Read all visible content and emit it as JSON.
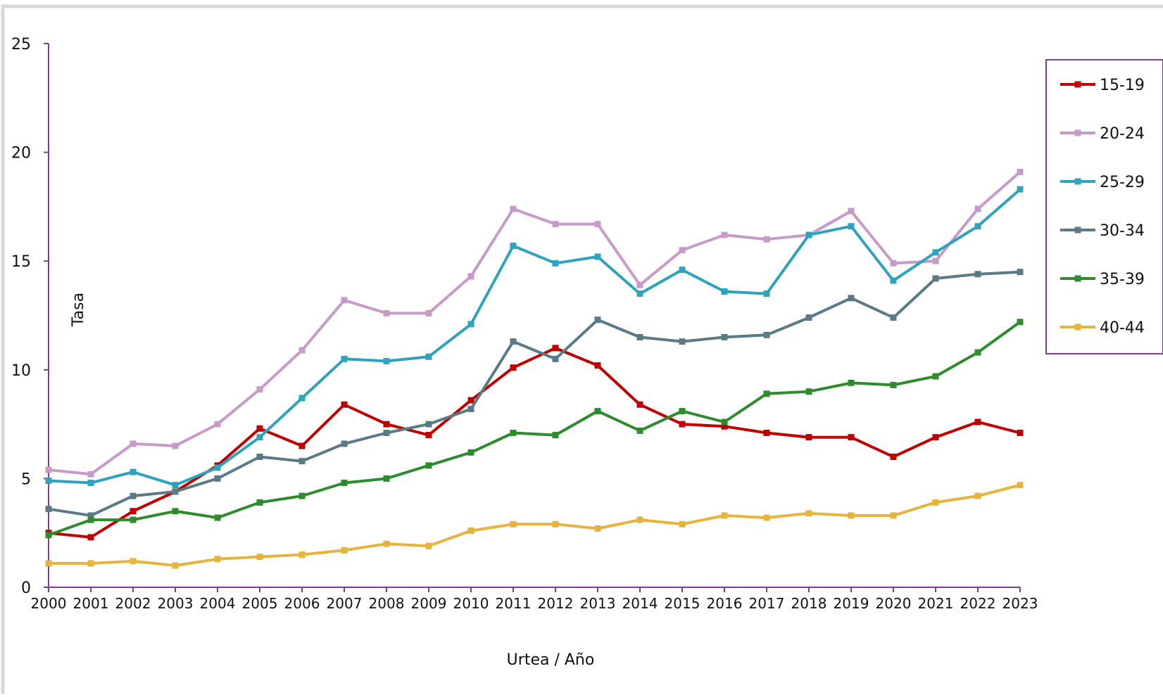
{
  "chart_data": {
    "type": "line",
    "title": "",
    "xlabel": "Urtea / Año",
    "ylabel": "Tasa",
    "x": [
      "2000",
      "2001",
      "2002",
      "2003",
      "2004",
      "2005",
      "2006",
      "2007",
      "2008",
      "2009",
      "2010",
      "2011",
      "2012",
      "2013",
      "2014",
      "2015",
      "2016",
      "2017",
      "2018",
      "2019",
      "2020",
      "2021",
      "2022",
      "2023"
    ],
    "y_ticks": [
      "0",
      "5",
      "10",
      "15",
      "20",
      "25"
    ],
    "ylim": [
      0,
      25
    ],
    "grid": false,
    "legend_position": "right",
    "colors": {
      "axis": "#7b3f8f",
      "frame": "#d9d9d9",
      "legend_border": "#7b3f8f"
    },
    "series": [
      {
        "name": "15-19",
        "color": "#c00000",
        "values": [
          2.5,
          2.3,
          3.5,
          4.4,
          5.6,
          7.3,
          6.5,
          8.4,
          7.5,
          7.0,
          8.6,
          10.1,
          11.0,
          10.2,
          8.4,
          7.5,
          7.4,
          7.1,
          6.9,
          6.9,
          6.0,
          6.9,
          7.6,
          7.1
        ]
      },
      {
        "name": "20-24",
        "color": "#c89ac9",
        "values": [
          5.4,
          5.2,
          6.6,
          6.5,
          7.5,
          9.1,
          10.9,
          13.2,
          12.6,
          12.6,
          14.3,
          17.4,
          16.7,
          16.7,
          13.9,
          15.5,
          16.2,
          16.0,
          16.2,
          17.3,
          14.9,
          15.0,
          17.4,
          19.1
        ]
      },
      {
        "name": "25-29",
        "color": "#2fa3bd",
        "values": [
          4.9,
          4.8,
          5.3,
          4.7,
          5.5,
          6.9,
          8.7,
          10.5,
          10.4,
          10.6,
          12.1,
          15.7,
          14.9,
          15.2,
          13.5,
          14.6,
          13.6,
          13.5,
          16.2,
          16.6,
          14.1,
          15.4,
          16.6,
          18.3
        ]
      },
      {
        "name": "30-34",
        "color": "#5a7a86",
        "values": [
          3.6,
          3.3,
          4.2,
          4.4,
          5.0,
          6.0,
          5.8,
          6.6,
          7.1,
          7.5,
          8.2,
          11.3,
          10.5,
          12.3,
          11.5,
          11.3,
          11.5,
          11.6,
          12.4,
          13.3,
          12.4,
          14.2,
          14.4,
          14.5
        ]
      },
      {
        "name": "35-39",
        "color": "#2e8b2e",
        "values": [
          2.4,
          3.1,
          3.1,
          3.5,
          3.2,
          3.9,
          4.2,
          4.8,
          5.0,
          5.6,
          6.2,
          7.1,
          7.0,
          8.1,
          7.2,
          8.1,
          7.6,
          8.9,
          9.0,
          9.4,
          9.3,
          9.7,
          10.8,
          12.2
        ]
      },
      {
        "name": "40-44",
        "color": "#e6b43c",
        "values": [
          1.1,
          1.1,
          1.2,
          1.0,
          1.3,
          1.4,
          1.5,
          1.7,
          2.0,
          1.9,
          2.6,
          2.9,
          2.9,
          2.7,
          3.1,
          2.9,
          3.3,
          3.2,
          3.4,
          3.3,
          3.3,
          3.9,
          4.2,
          4.7
        ]
      }
    ]
  }
}
